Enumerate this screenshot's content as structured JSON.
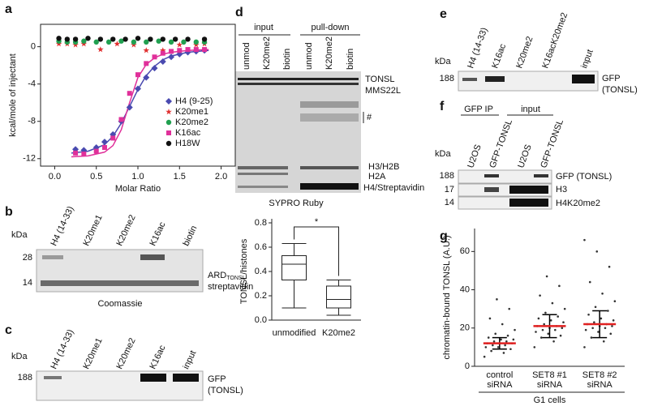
{
  "panel_labels": [
    "a",
    "b",
    "c",
    "d",
    "e",
    "f",
    "g"
  ],
  "chart_data": [
    {
      "type": "scatter",
      "ylabel": "kcal/mole of injectant",
      "xlabel": "Molar Ratio",
      "xlim": [
        -0.17,
        2.17
      ],
      "ylim": [
        -12.8,
        2.4
      ],
      "xticks": [
        {
          "value": 0,
          "label": "0.0"
        },
        {
          "value": 0.5,
          "label": "0.5"
        },
        {
          "value": 1,
          "label": "1.0"
        },
        {
          "value": 1.5,
          "label": "1.5"
        },
        {
          "value": 2,
          "label": "2.0"
        }
      ],
      "yticks": [
        0,
        -4,
        -8,
        -12
      ],
      "series": [
        {
          "name": "H4 (9-25)",
          "color": "#4a4ab0",
          "marker": "diamond",
          "x": [
            0.25,
            0.35,
            0.5,
            0.6,
            0.7,
            0.8,
            0.9,
            1.0,
            1.1,
            1.2,
            1.3,
            1.4,
            1.5,
            1.6,
            1.7,
            1.8
          ],
          "values": [
            -11,
            -11.1,
            -10.8,
            -10.2,
            -9.4,
            -8,
            -6.5,
            -4.5,
            -3.3,
            -2.3,
            -1.6,
            -1.1,
            -0.8,
            -0.6,
            -0.5,
            -0.4
          ]
        },
        {
          "name": "K20me1",
          "color": "#e03030",
          "marker": "star",
          "x": [
            0.05,
            0.15,
            0.25,
            0.35,
            0.55,
            0.75,
            0.95,
            1.1,
            1.3,
            1.5,
            1.7,
            1.8
          ],
          "values": [
            0.3,
            0.3,
            0.2,
            0.3,
            -0.3,
            0.3,
            0.2,
            -0.4,
            -0.4,
            0.2,
            0.2,
            0.3
          ]
        },
        {
          "name": "K20me2",
          "color": "#20a050",
          "marker": "circle",
          "x": [
            0.05,
            0.15,
            0.25,
            0.35,
            0.5,
            0.65,
            0.8,
            0.95,
            1.1,
            1.25,
            1.4,
            1.55,
            1.7,
            1.8
          ],
          "values": [
            0.6,
            0.5,
            0.5,
            0.6,
            0.5,
            0.5,
            0.6,
            0.5,
            0.5,
            0.6,
            0.5,
            0.5,
            0.5,
            0.5
          ]
        },
        {
          "name": "K16ac",
          "color": "#e0309a",
          "marker": "square",
          "x": [
            0.25,
            0.35,
            0.5,
            0.6,
            0.7,
            0.8,
            0.9,
            1.0,
            1.1,
            1.2,
            1.3,
            1.4,
            1.5,
            1.6,
            1.7,
            1.8
          ],
          "values": [
            -11.4,
            -11.5,
            -11.2,
            -10.8,
            -9.8,
            -7.8,
            -5,
            -3,
            -1.8,
            -1.1,
            -0.7,
            -0.5,
            -0.4,
            -0.3,
            -0.3,
            -0.3
          ]
        },
        {
          "name": "H18W",
          "color": "#111111",
          "marker": "circle",
          "x": [
            0.05,
            0.15,
            0.25,
            0.4,
            0.55,
            0.7,
            0.85,
            1.0,
            1.15,
            1.3,
            1.45,
            1.6,
            1.8
          ],
          "values": [
            0.9,
            0.8,
            0.8,
            0.9,
            0.8,
            0.8,
            0.8,
            0.9,
            0.8,
            0.8,
            0.8,
            0.8,
            0.8
          ]
        }
      ],
      "fits": [
        {
          "color": "#4a4ab0",
          "x": [
            0.2,
            0.4,
            0.6,
            0.7,
            0.8,
            0.9,
            1.0,
            1.1,
            1.2,
            1.3,
            1.4,
            1.6,
            1.85
          ],
          "values": [
            -11.4,
            -11.2,
            -10.5,
            -9.6,
            -8.2,
            -6.4,
            -4.6,
            -3.1,
            -2.1,
            -1.4,
            -1.0,
            -0.6,
            -0.4
          ]
        },
        {
          "color": "#e0309a",
          "x": [
            0.2,
            0.4,
            0.6,
            0.7,
            0.8,
            0.9,
            1.0,
            1.1,
            1.2,
            1.3,
            1.4,
            1.6,
            1.85
          ],
          "values": [
            -11.8,
            -11.7,
            -11.3,
            -10.6,
            -8.9,
            -6,
            -3.3,
            -1.9,
            -1.2,
            -0.8,
            -0.6,
            -0.4,
            -0.3
          ]
        }
      ]
    },
    {
      "type": "box",
      "ylabel": "TONSL/histones",
      "categories": [
        "unmodified",
        "K20me2"
      ],
      "whisker_low": [
        0.1,
        0.04
      ],
      "q1": [
        0.33,
        0.1
      ],
      "median": [
        0.46,
        0.17
      ],
      "q3": [
        0.53,
        0.28
      ],
      "whisker_high": [
        0.63,
        0.33
      ],
      "ylim": [
        0,
        0.8
      ],
      "yticks": [
        {
          "value": 0,
          "label": "0.0"
        },
        {
          "value": 0.2,
          "label": "0.2"
        },
        {
          "value": 0.4,
          "label": "0.4"
        },
        {
          "value": 0.6,
          "label": "0.6"
        },
        {
          "value": 0.8,
          "label": "0.8"
        }
      ],
      "annotation": "*"
    },
    {
      "type": "dot",
      "ylabel": "chromatin-bound TONSL (A.U.)",
      "categories": [
        [
          "control",
          "siRNA"
        ],
        [
          "SET8 #1",
          "siRNA"
        ],
        [
          "SET8 #2",
          "siRNA"
        ]
      ],
      "group_label": "G1 cells",
      "points": [
        [
          5,
          7,
          8,
          9,
          10,
          10,
          11,
          11,
          12,
          12,
          12,
          13,
          13,
          14,
          14,
          15,
          16,
          17,
          19,
          22,
          25,
          30,
          35
        ],
        [
          10,
          13,
          15,
          16,
          17,
          18,
          19,
          19,
          20,
          20,
          21,
          21,
          22,
          23,
          24,
          25,
          26,
          28,
          30,
          33,
          37,
          42,
          47
        ],
        [
          10,
          13,
          15,
          17,
          18,
          19,
          20,
          20,
          21,
          21,
          22,
          22,
          23,
          24,
          25,
          27,
          29,
          31,
          34,
          38,
          44,
          52,
          60,
          66
        ]
      ],
      "means": [
        12,
        21,
        22
      ],
      "sd": [
        3,
        6,
        7
      ],
      "ylim": [
        0,
        72
      ],
      "yticks": [
        0,
        20,
        40,
        60
      ],
      "point_color": "#333333",
      "mean_color": "#e02020"
    }
  ],
  "gel_b": {
    "kda": "kDa",
    "lanes": [
      "H4 (14-33)",
      "K20me1",
      "K20me2",
      "K16ac",
      "biotin"
    ],
    "markers": [
      "28",
      "14"
    ],
    "bands": [
      "ARD",
      "streptavidin"
    ],
    "band_sub": "TONSL",
    "stain": "Coomassie"
  },
  "gel_c": {
    "kda": "kDa",
    "lanes": [
      "H4 (14-33)",
      "K20me1",
      "K20me2",
      "K16ac",
      "input"
    ],
    "markers": [
      "188"
    ],
    "bands": [
      "GFP",
      "(TONSL)"
    ]
  },
  "gel_d": {
    "groups": [
      "input",
      "pull-down"
    ],
    "lanes": [
      "unmod",
      "K20me2",
      "biotin",
      "unmod",
      "K20me2",
      "biotin"
    ],
    "bands": [
      "TONSL",
      "MMS22L",
      "#",
      "H3/H2B",
      "H2A",
      "H4/Streptavidin"
    ],
    "stain": "SYPRO Ruby"
  },
  "gel_e": {
    "kda": "kDa",
    "lanes": [
      "H4 (14-33)",
      "K16ac",
      "K20me2",
      "K16acK20me2",
      "input"
    ],
    "markers": [
      "188"
    ],
    "bands": [
      "GFP",
      "(TONSL)"
    ]
  },
  "gel_f": {
    "groups": [
      "GFP IP",
      "input"
    ],
    "kda": "kDa",
    "lanes": [
      "U2OS",
      "GFP-TONSL",
      "U2OS",
      "GFP-TONSL"
    ],
    "markers": [
      "188",
      "17",
      "14"
    ],
    "bands": [
      "GFP (TONSL)",
      "H3",
      "H4K20me2"
    ]
  }
}
